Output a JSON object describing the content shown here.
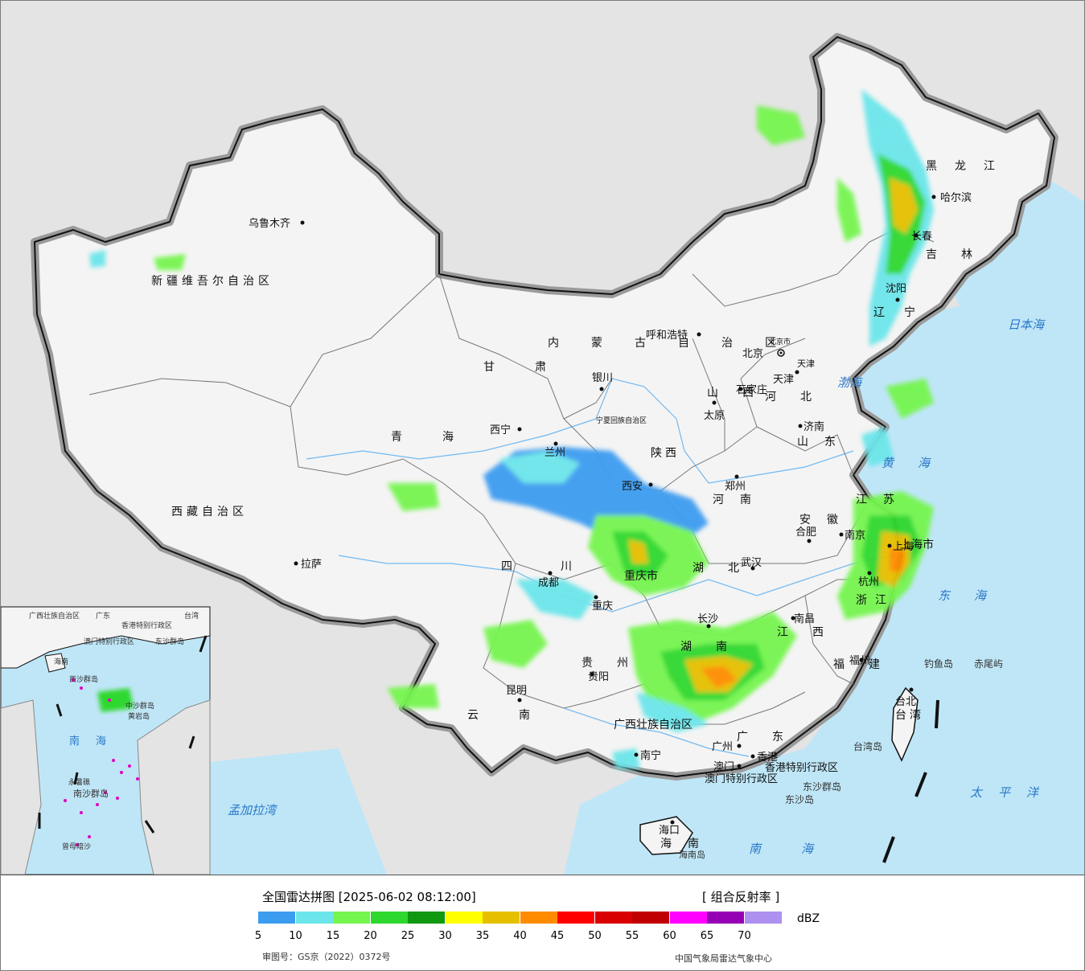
{
  "legend": {
    "title": "全国雷达拼图 [2025-06-02 08:12:00]",
    "product": "[ 组合反射率 ]",
    "unit": "dBZ",
    "colors": [
      "#3c9cf0",
      "#6ce6ea",
      "#76f550",
      "#2ed82e",
      "#109810",
      "#ffff00",
      "#e6c000",
      "#ff8c00",
      "#ff0000",
      "#d80000",
      "#c00000",
      "#ff00ff",
      "#9600b4",
      "#ae90f0"
    ],
    "ticks": [
      "5",
      "10",
      "15",
      "20",
      "25",
      "30",
      "35",
      "40",
      "45",
      "50",
      "55",
      "60",
      "65",
      "70"
    ],
    "approval": "审图号：GS京（2022）0372号",
    "source": "中国气象局雷达气象中心"
  },
  "map": {
    "regions": [
      {
        "name": "新疆维吾尔自治区"
      },
      {
        "name": "西藏自治区"
      },
      {
        "name": "青海"
      },
      {
        "name": "甘肃"
      },
      {
        "name": "内蒙古自治区"
      },
      {
        "name": "黑龙江"
      },
      {
        "name": "吉林"
      },
      {
        "name": "辽宁"
      },
      {
        "name": "河北"
      },
      {
        "name": "山西"
      },
      {
        "name": "山东"
      },
      {
        "name": "陕西"
      },
      {
        "name": "河南"
      },
      {
        "name": "江苏"
      },
      {
        "name": "安徽"
      },
      {
        "name": "上海市"
      },
      {
        "name": "浙江"
      },
      {
        "name": "湖北"
      },
      {
        "name": "湖南"
      },
      {
        "name": "江西"
      },
      {
        "name": "福建"
      },
      {
        "name": "四川"
      },
      {
        "name": "重庆市"
      },
      {
        "name": "贵州"
      },
      {
        "name": "云南"
      },
      {
        "name": "广西壮族自治区"
      },
      {
        "name": "广东"
      },
      {
        "name": "海南"
      },
      {
        "name": "台湾"
      },
      {
        "name": "宁夏回族自治区"
      },
      {
        "name": "北京市"
      },
      {
        "name": "天津"
      },
      {
        "name": "香港特别行政区"
      },
      {
        "name": "澳门特别行政区"
      }
    ],
    "cities": [
      {
        "name": "乌鲁木齐"
      },
      {
        "name": "拉萨"
      },
      {
        "name": "西宁"
      },
      {
        "name": "兰州"
      },
      {
        "name": "银川"
      },
      {
        "name": "呼和浩特"
      },
      {
        "name": "哈尔滨"
      },
      {
        "name": "长春"
      },
      {
        "name": "沈阳"
      },
      {
        "name": "北京"
      },
      {
        "name": "天津"
      },
      {
        "name": "石家庄"
      },
      {
        "name": "太原"
      },
      {
        "name": "济南"
      },
      {
        "name": "郑州"
      },
      {
        "name": "西安"
      },
      {
        "name": "合肥"
      },
      {
        "name": "南京"
      },
      {
        "name": "上海"
      },
      {
        "name": "杭州"
      },
      {
        "name": "武汉"
      },
      {
        "name": "成都"
      },
      {
        "name": "重庆"
      },
      {
        "name": "长沙"
      },
      {
        "name": "南昌"
      },
      {
        "name": "福州"
      },
      {
        "name": "贵阳"
      },
      {
        "name": "昆明"
      },
      {
        "name": "南宁"
      },
      {
        "name": "广州"
      },
      {
        "name": "香港"
      },
      {
        "name": "澳门"
      },
      {
        "name": "海口"
      },
      {
        "name": "台北"
      }
    ],
    "seas": [
      {
        "name": "日本海"
      },
      {
        "name": "渤海"
      },
      {
        "name": "黄海"
      },
      {
        "name": "东海"
      },
      {
        "name": "太平洋"
      },
      {
        "name": "南海"
      },
      {
        "name": "孟加拉湾"
      }
    ],
    "islands": [
      {
        "name": "钓鱼岛"
      },
      {
        "name": "赤尾屿"
      },
      {
        "name": "台湾岛"
      },
      {
        "name": "海南岛"
      },
      {
        "name": "东沙群岛"
      },
      {
        "name": "东沙岛"
      }
    ],
    "inset": {
      "labels": [
        "广西壮族自治区",
        "广东",
        "海南",
        "台湾",
        "香港特别行政区",
        "澳门特别行政区",
        "东沙群岛",
        "西沙群岛",
        "中沙群岛",
        "黄岩岛",
        "南海",
        "南沙群岛",
        "永暑礁",
        "曾母暗沙"
      ]
    }
  }
}
